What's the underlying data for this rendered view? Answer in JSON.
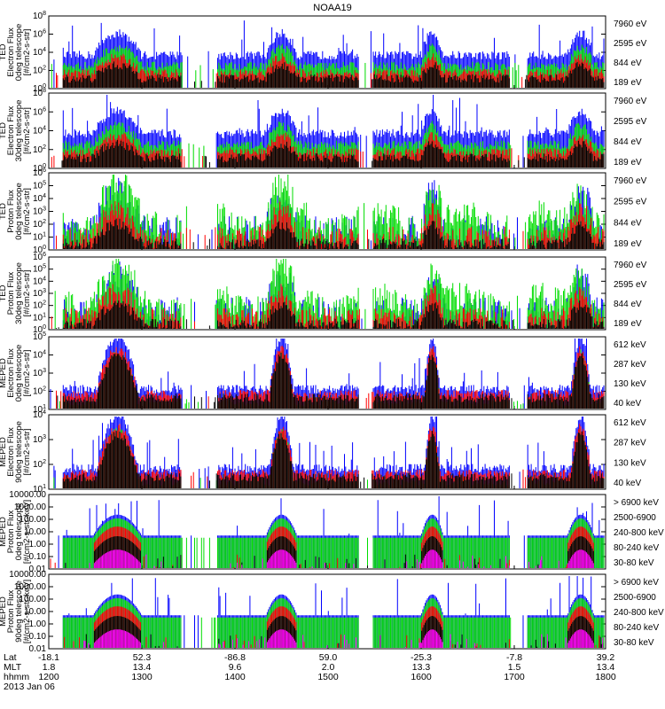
{
  "title": "NOAA19",
  "colors": {
    "blue": "#0000ff",
    "red": "#ff0000",
    "green": "#00dd00",
    "black": "#000000",
    "magenta": "#ff00ff"
  },
  "panels": [
    {
      "ylabel": [
        "TED",
        "Electron Flux",
        "0deg telescope",
        "[#/cm2-s-str]"
      ],
      "yticks": [
        "10^0",
        "10^2",
        "10^4",
        "10^6",
        "10^8"
      ],
      "legend": [
        {
          "text": "7960 eV",
          "color": "#000000"
        },
        {
          "text": "2595 eV",
          "color": "#ff0000"
        },
        {
          "text": "844 eV",
          "color": "#00dd00"
        },
        {
          "text": "189 eV",
          "color": "#0000ff"
        }
      ]
    },
    {
      "ylabel": [
        "TED",
        "Electron Flux",
        "30deg telescope",
        "[#/cm2-s-str]"
      ],
      "yticks": [
        "10^0",
        "10^2",
        "10^4",
        "10^6",
        "10^8"
      ],
      "legend": [
        {
          "text": "7960 eV",
          "color": "#000000"
        },
        {
          "text": "2595 eV",
          "color": "#ff0000"
        },
        {
          "text": "844 eV",
          "color": "#00dd00"
        },
        {
          "text": "189 eV",
          "color": "#0000ff"
        }
      ]
    },
    {
      "ylabel": [
        "TED",
        "Proton Flux",
        "0deg telescope",
        "[#/cm2-s-str]"
      ],
      "yticks": [
        "10^0",
        "10^1",
        "10^2",
        "10^3",
        "10^4",
        "10^5",
        "10^6"
      ],
      "legend": [
        {
          "text": "7960 eV",
          "color": "#000000"
        },
        {
          "text": "2595 eV",
          "color": "#ff0000"
        },
        {
          "text": "844 eV",
          "color": "#00dd00"
        },
        {
          "text": "189 eV",
          "color": "#0000ff"
        }
      ]
    },
    {
      "ylabel": [
        "TED",
        "Proton Flux",
        "30deg telescope",
        "[#/cm2-s-str]"
      ],
      "yticks": [
        "10^0",
        "10^1",
        "10^2",
        "10^3",
        "10^4",
        "10^5",
        "10^6"
      ],
      "legend": [
        {
          "text": "7960 eV",
          "color": "#000000"
        },
        {
          "text": "2595 eV",
          "color": "#ff0000"
        },
        {
          "text": "844 eV",
          "color": "#00dd00"
        },
        {
          "text": "189 eV",
          "color": "#0000ff"
        }
      ]
    },
    {
      "ylabel": [
        "MEPED",
        "Electron Flux",
        "0deg telescope",
        "[#/cm2-s-str]"
      ],
      "yticks": [
        "10^1",
        "10^2",
        "10^3",
        "10^4",
        "10^5"
      ],
      "legend": [
        {
          "text": "612 keV",
          "color": "#000000"
        },
        {
          "text": "287 keV",
          "color": "#ff0000"
        },
        {
          "text": "130 keV",
          "color": "#00dd00"
        },
        {
          "text": "40 keV",
          "color": "#0000ff"
        }
      ]
    },
    {
      "ylabel": [
        "MEPED",
        "Electron Flux",
        "90deg telescope",
        "[#/cm2-s-str]"
      ],
      "yticks": [
        "10^1",
        "10^2",
        "10^3",
        "10^4"
      ],
      "legend": [
        {
          "text": "612 keV",
          "color": "#000000"
        },
        {
          "text": "287 keV",
          "color": "#ff0000"
        },
        {
          "text": "130 keV",
          "color": "#00dd00"
        },
        {
          "text": "40 keV",
          "color": "#0000ff"
        }
      ]
    },
    {
      "ylabel": [
        "MEPED",
        "Proton Flux",
        "0deg telescope",
        "[#/cm2-s-str-keV]"
      ],
      "yticks": [
        "0.01",
        "0.10",
        "1.00",
        "10.00",
        "100.00",
        "1000.00",
        "10000.00"
      ],
      "legend": [
        {
          "text": "> 6900 keV",
          "color": "#ff00ff"
        },
        {
          "text": "2500-6900",
          "color": "#000000"
        },
        {
          "text": "240-800 keV",
          "color": "#ff0000"
        },
        {
          "text": "80-240 keV",
          "color": "#00dd00"
        },
        {
          "text": "30-80 keV",
          "color": "#0000ff"
        }
      ]
    },
    {
      "ylabel": [
        "MEPED",
        "Proton Flux",
        "90deg telescope",
        "[#/cm2-s-str-keV]"
      ],
      "yticks": [
        "0.01",
        "0.10",
        "1.00",
        "10.00",
        "100.00",
        "1000.00",
        "10000.00"
      ],
      "legend": [
        {
          "text": "> 6900 keV",
          "color": "#ff00ff"
        },
        {
          "text": "2500-6900",
          "color": "#000000"
        },
        {
          "text": "240-800 keV",
          "color": "#ff0000"
        },
        {
          "text": "80-240 keV",
          "color": "#00dd00"
        },
        {
          "text": "30-80 keV",
          "color": "#0000ff"
        }
      ]
    }
  ],
  "xaxis": {
    "row_labels": [
      "Lat",
      "MLT",
      "hhmm"
    ],
    "lat": [
      "-18.1",
      "52.3",
      "-86.8",
      "59.0",
      "-25.3",
      "-7.8",
      "39.2"
    ],
    "mlt": [
      "1.8",
      "13.4",
      "9.6",
      "2.0",
      "13.3",
      "1.5",
      "13.4"
    ],
    "hhmm": [
      "1200",
      "1300",
      "1400",
      "1500",
      "1600",
      "1700",
      "1800"
    ],
    "date": "2013 Jan 06"
  },
  "chart_data": {
    "type": "line",
    "title": "NOAA19",
    "x_hhmm": [
      "1200",
      "1300",
      "1400",
      "1500",
      "1600",
      "1700",
      "1800"
    ],
    "xlim": [
      "1200",
      "1800"
    ],
    "series_peaks_hhmm": [
      "1225",
      "1410",
      "1605",
      "1752"
    ],
    "panels": [
      {
        "name": "TED Electron Flux 0deg",
        "ylim": [
          1,
          100000000
        ],
        "yscale": "log"
      },
      {
        "name": "TED Electron Flux 30deg",
        "ylim": [
          1,
          100000000
        ],
        "yscale": "log"
      },
      {
        "name": "TED Proton Flux 0deg",
        "ylim": [
          1,
          1000000
        ],
        "yscale": "log"
      },
      {
        "name": "TED Proton Flux 30deg",
        "ylim": [
          1,
          1000000
        ],
        "yscale": "log"
      },
      {
        "name": "MEPED Electron Flux 0deg",
        "ylim": [
          10,
          100000
        ],
        "yscale": "log"
      },
      {
        "name": "MEPED Electron Flux 90deg",
        "ylim": [
          10,
          10000
        ],
        "yscale": "log"
      },
      {
        "name": "MEPED Proton Flux 0deg",
        "ylim": [
          0.01,
          10000
        ],
        "yscale": "log"
      },
      {
        "name": "MEPED Proton Flux 90deg",
        "ylim": [
          0.01,
          10000
        ],
        "yscale": "log"
      }
    ]
  }
}
